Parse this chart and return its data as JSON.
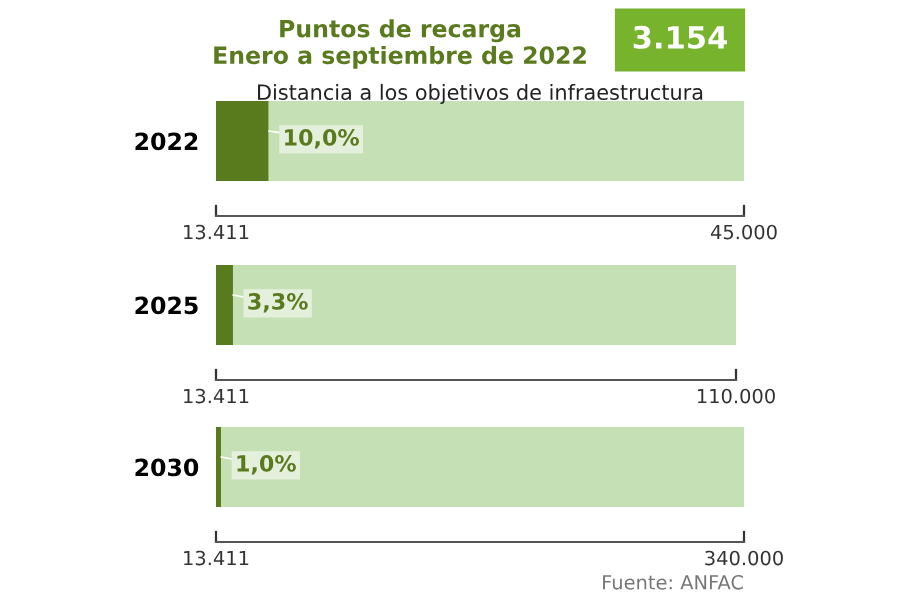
{
  "chart_data": [
    {
      "type": "bar",
      "orientation": "horizontal",
      "stacked": true,
      "title": "Puntos de recarga\nEnero a septiembre de 2022",
      "subtitle": "Distancia a los objetivos de infraestructura",
      "annotations": [
        "3.154",
        {
          "text": "10,0%",
          "y": "2022"
        }
      ],
      "categories": [
        "2022"
      ],
      "xlim": [
        13411,
        45000
      ],
      "xticks": [
        {
          "value": 13411,
          "label": "13.411"
        },
        {
          "value": 45000,
          "label": "45.000"
        }
      ],
      "grid": false,
      "legend": false,
      "series": [
        {
          "color": "#5a7a1e",
          "base": [
            13411
          ],
          "values": [
            3154
          ]
        },
        {
          "color": "#c5e0b4",
          "values": [
            28435
          ]
        }
      ]
    },
    {
      "type": "bar",
      "orientation": "horizontal",
      "stacked": true,
      "annotations": [
        {
          "text": "3,3%",
          "y": "2025"
        }
      ],
      "categories": [
        "2025"
      ],
      "xlim": [
        13411,
        110000
      ],
      "xticks": [
        {
          "value": 13411,
          "label": "13.411"
        },
        {
          "value": 110000,
          "label": "110.000"
        }
      ],
      "grid": false,
      "legend": false,
      "series": [
        {
          "color": "#5a7a1e",
          "base": [
            13411
          ],
          "values": [
            3154
          ]
        },
        {
          "color": "#c5e0b4",
          "values": [
            93435
          ]
        }
      ]
    },
    {
      "type": "bar",
      "orientation": "horizontal",
      "stacked": true,
      "annotations": [
        {
          "text": "1,0%",
          "y": "2030"
        },
        "Fuente: ANFAC"
      ],
      "categories": [
        "2030"
      ],
      "xlim": [
        13411,
        340000
      ],
      "xticks": [
        {
          "value": 13411,
          "label": "13.411"
        },
        {
          "value": 340000,
          "label": "340.000"
        }
      ],
      "grid": false,
      "legend": false,
      "series": [
        {
          "color": "#5a7a1e",
          "base": [
            13411
          ],
          "values": [
            3154
          ]
        },
        {
          "color": "#c5e0b4",
          "values": [
            323435
          ]
        }
      ]
    }
  ]
}
